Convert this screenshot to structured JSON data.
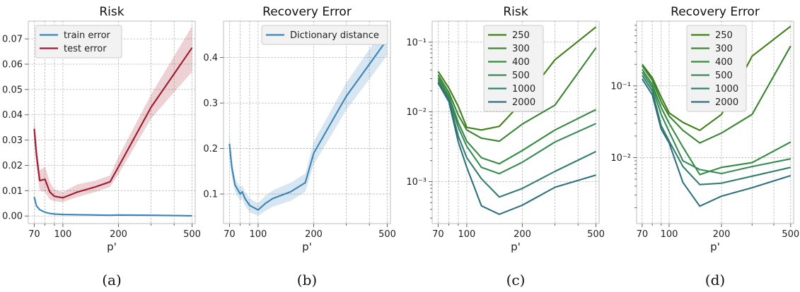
{
  "chart_data": [
    {
      "id": "a",
      "type": "line",
      "title": "Risk",
      "xlabel": "p'",
      "ylabel": "",
      "caption": "(a)",
      "xscale": "log",
      "yscale": "linear",
      "xlim": [
        65,
        520
      ],
      "ylim": [
        -0.003,
        0.077
      ],
      "xticks": [
        70,
        100,
        200,
        500
      ],
      "xticklabels": [
        "70",
        "100",
        "200",
        "500"
      ],
      "yticks": [
        0.0,
        0.01,
        0.02,
        0.03,
        0.04,
        0.05,
        0.06,
        0.07
      ],
      "yticklabels": [
        "0.00",
        "0.01",
        "0.02",
        "0.03",
        "0.04",
        "0.05",
        "0.06",
        "0.07"
      ],
      "grid": true,
      "legend": "top-left",
      "series": [
        {
          "name": "train error",
          "color": "#3a84b8",
          "x": [
            70,
            72,
            75,
            80,
            85,
            90,
            100,
            120,
            150,
            180,
            200,
            300,
            500
          ],
          "y": [
            0.0075,
            0.004,
            0.0025,
            0.0015,
            0.001,
            0.0008,
            0.0006,
            0.0005,
            0.0004,
            0.0003,
            0.0004,
            0.0003,
            0.0001
          ]
        },
        {
          "name": "test error",
          "color": "#a1182f",
          "x": [
            70,
            72,
            75,
            80,
            85,
            90,
            100,
            120,
            150,
            180,
            200,
            300,
            500
          ],
          "y": [
            0.0345,
            0.024,
            0.014,
            0.0145,
            0.0095,
            0.0078,
            0.0072,
            0.0095,
            0.0115,
            0.0135,
            0.0195,
            0.043,
            0.0665
          ],
          "band_lower": [
            0.0295,
            0.019,
            0.01,
            0.0095,
            0.0065,
            0.0058,
            0.0055,
            0.0075,
            0.0095,
            0.0115,
            0.0165,
            0.0385,
            0.057
          ],
          "band_upper": [
            0.0395,
            0.029,
            0.018,
            0.0195,
            0.0135,
            0.0105,
            0.0095,
            0.0125,
            0.014,
            0.016,
            0.0235,
            0.048,
            0.075
          ]
        }
      ]
    },
    {
      "id": "b",
      "type": "line",
      "title": "Recovery Error",
      "xlabel": "p'",
      "ylabel": "",
      "caption": "(b)",
      "xscale": "log",
      "yscale": "linear",
      "xlim": [
        65,
        520
      ],
      "ylim": [
        0.035,
        0.48
      ],
      "xticks": [
        70,
        100,
        200,
        500
      ],
      "xticklabels": [
        "70",
        "100",
        "200",
        "500"
      ],
      "yticks": [
        0.1,
        0.2,
        0.3,
        0.4
      ],
      "yticklabels": [
        "0.1",
        "0.2",
        "0.3",
        "0.4"
      ],
      "grid": true,
      "legend": "top-right",
      "series": [
        {
          "name": "Dictionary distance",
          "color": "#3a84b8",
          "x": [
            70,
            72,
            75,
            80,
            82,
            85,
            90,
            100,
            110,
            120,
            150,
            180,
            200,
            300,
            500
          ],
          "y": [
            0.21,
            0.16,
            0.12,
            0.1,
            0.105,
            0.09,
            0.075,
            0.065,
            0.08,
            0.09,
            0.105,
            0.125,
            0.19,
            0.315,
            0.44
          ],
          "band_lower": [
            0.185,
            0.14,
            0.105,
            0.085,
            0.09,
            0.075,
            0.06,
            0.052,
            0.063,
            0.072,
            0.085,
            0.105,
            0.165,
            0.285,
            0.405
          ],
          "band_upper": [
            0.235,
            0.18,
            0.135,
            0.115,
            0.12,
            0.105,
            0.09,
            0.08,
            0.097,
            0.108,
            0.125,
            0.145,
            0.215,
            0.345,
            0.475
          ]
        }
      ]
    },
    {
      "id": "c",
      "type": "line",
      "title": "Risk",
      "xlabel": "p'",
      "ylabel": "",
      "caption": "(c)",
      "xscale": "log",
      "yscale": "log",
      "xlim": [
        65,
        520
      ],
      "ylim": [
        0.00025,
        0.2
      ],
      "xticks": [
        70,
        100,
        200,
        500
      ],
      "xticklabels": [
        "70",
        "100",
        "200",
        "500"
      ],
      "yticks": [
        0.001,
        0.01,
        0.1
      ],
      "yticklabels": [
        "10⁻³",
        "10⁻²",
        "10⁻¹"
      ],
      "grid": true,
      "legend": "top-center",
      "series": [
        {
          "name": "250",
          "color": "#3f7f17",
          "x": [
            70,
            80,
            90,
            100,
            120,
            150,
            200,
            300,
            500
          ],
          "y": [
            0.038,
            0.022,
            0.012,
            0.006,
            0.0055,
            0.0062,
            0.014,
            0.056,
            0.165
          ]
        },
        {
          "name": "300",
          "color": "#388531",
          "x": [
            70,
            80,
            90,
            100,
            120,
            150,
            200,
            300,
            500
          ],
          "y": [
            0.034,
            0.019,
            0.009,
            0.0055,
            0.0042,
            0.0038,
            0.0067,
            0.0125,
            0.083
          ]
        },
        {
          "name": "400",
          "color": "#368a42",
          "x": [
            70,
            80,
            90,
            100,
            120,
            150,
            200,
            300,
            500
          ],
          "y": [
            0.031,
            0.017,
            0.007,
            0.0038,
            0.0022,
            0.0018,
            0.0028,
            0.0055,
            0.0108
          ]
        },
        {
          "name": "500",
          "color": "#358a55",
          "x": [
            70,
            80,
            90,
            100,
            120,
            150,
            200,
            300,
            500
          ],
          "y": [
            0.029,
            0.016,
            0.006,
            0.0032,
            0.0016,
            0.0013,
            0.0019,
            0.0037,
            0.0068
          ]
        },
        {
          "name": "1000",
          "color": "#337e6c",
          "x": [
            70,
            80,
            90,
            100,
            120,
            150,
            200,
            300,
            500
          ],
          "y": [
            0.027,
            0.015,
            0.0045,
            0.0022,
            0.0011,
            0.0006,
            0.0008,
            0.0014,
            0.0027
          ]
        },
        {
          "name": "2000",
          "color": "#2e7080",
          "x": [
            70,
            80,
            90,
            100,
            120,
            150,
            200,
            300,
            500
          ],
          "y": [
            0.026,
            0.014,
            0.0037,
            0.0016,
            0.00045,
            0.00034,
            0.00046,
            0.00083,
            0.00124
          ]
        }
      ]
    },
    {
      "id": "d",
      "type": "line",
      "title": "Recovery Error",
      "xlabel": "p'",
      "ylabel": "",
      "caption": "(d)",
      "xscale": "log",
      "yscale": "log",
      "xlim": [
        65,
        520
      ],
      "ylim": [
        0.0012,
        0.8
      ],
      "xticks": [
        70,
        100,
        200,
        500
      ],
      "xticklabels": [
        "70",
        "100",
        "200",
        "500"
      ],
      "yticks": [
        0.01,
        0.1
      ],
      "yticklabels": [
        "10⁻²",
        "10⁻¹"
      ],
      "grid": true,
      "legend": "top-center",
      "series": [
        {
          "name": "250",
          "color": "#3f7f17",
          "x": [
            70,
            80,
            90,
            100,
            120,
            150,
            200,
            300,
            500
          ],
          "y": [
            0.2,
            0.13,
            0.07,
            0.042,
            0.031,
            0.024,
            0.04,
            0.26,
            0.68
          ]
        },
        {
          "name": "300",
          "color": "#388531",
          "x": [
            70,
            80,
            90,
            100,
            120,
            150,
            200,
            300,
            500
          ],
          "y": [
            0.19,
            0.12,
            0.06,
            0.038,
            0.024,
            0.016,
            0.022,
            0.04,
            0.36
          ]
        },
        {
          "name": "400",
          "color": "#368a42",
          "x": [
            70,
            80,
            90,
            100,
            120,
            150,
            200,
            300,
            500
          ],
          "y": [
            0.17,
            0.105,
            0.05,
            0.03,
            0.014,
            0.0058,
            0.0073,
            0.0085,
            0.0165
          ]
        },
        {
          "name": "500",
          "color": "#358a55",
          "x": [
            70,
            80,
            90,
            100,
            120,
            150,
            200,
            300,
            500
          ],
          "y": [
            0.155,
            0.095,
            0.04,
            0.023,
            0.009,
            0.0068,
            0.006,
            0.0075,
            0.0096
          ]
        },
        {
          "name": "1000",
          "color": "#337e6c",
          "x": [
            70,
            80,
            90,
            100,
            120,
            150,
            200,
            300,
            500
          ],
          "y": [
            0.14,
            0.085,
            0.028,
            0.017,
            0.0075,
            0.0042,
            0.0044,
            0.0055,
            0.0073
          ]
        },
        {
          "name": "2000",
          "color": "#2e7080",
          "x": [
            70,
            80,
            90,
            100,
            120,
            150,
            200,
            300,
            500
          ],
          "y": [
            0.125,
            0.075,
            0.025,
            0.016,
            0.0045,
            0.0021,
            0.0029,
            0.0038,
            0.0056
          ]
        }
      ]
    }
  ]
}
